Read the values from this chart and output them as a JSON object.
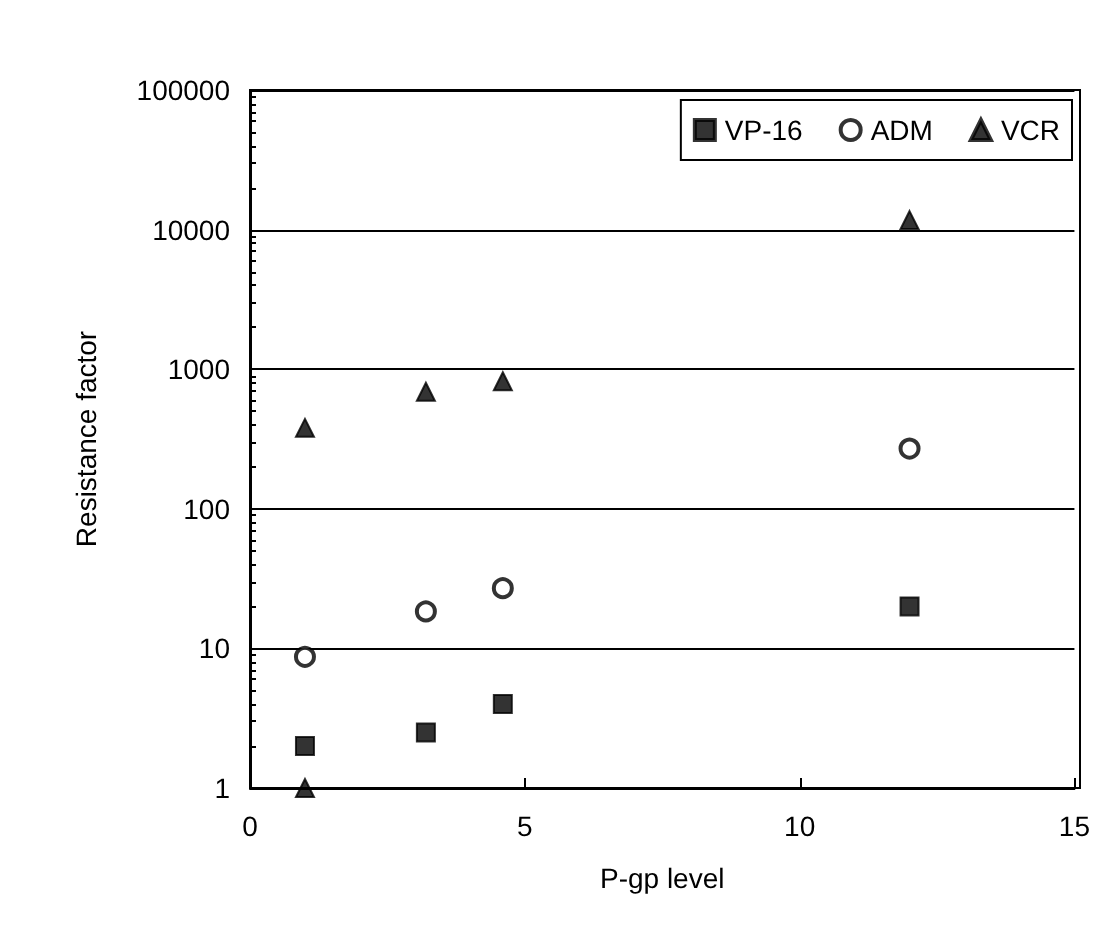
{
  "chart_data": {
    "type": "scatter",
    "xlabel": "P-gp level",
    "ylabel": "Resistance factor",
    "x": [
      1.0,
      3.2,
      4.6,
      12.0
    ],
    "series": [
      {
        "name": "VP-16",
        "color": "#000000",
        "marker": "square",
        "values": [
          2.0,
          2.5,
          4.0,
          20
        ]
      },
      {
        "name": "ADM",
        "color": "#000000",
        "marker": "circle",
        "values": [
          8.7,
          18.4,
          27,
          270
        ]
      },
      {
        "name": "VCR",
        "color": "#000000",
        "marker": "triangle",
        "x": [
          1.0,
          3.2,
          4.6,
          12.0,
          1.0
        ],
        "values": [
          380,
          690,
          820,
          11700,
          1
        ]
      }
    ],
    "xlim": [
      0,
      15
    ],
    "xticks": [
      0,
      5,
      10,
      15
    ],
    "ylim": [
      1,
      100000
    ],
    "yticks": [
      1,
      10,
      100,
      1000,
      10000,
      100000
    ],
    "log": "y",
    "grid": "y",
    "legend": "top right"
  }
}
